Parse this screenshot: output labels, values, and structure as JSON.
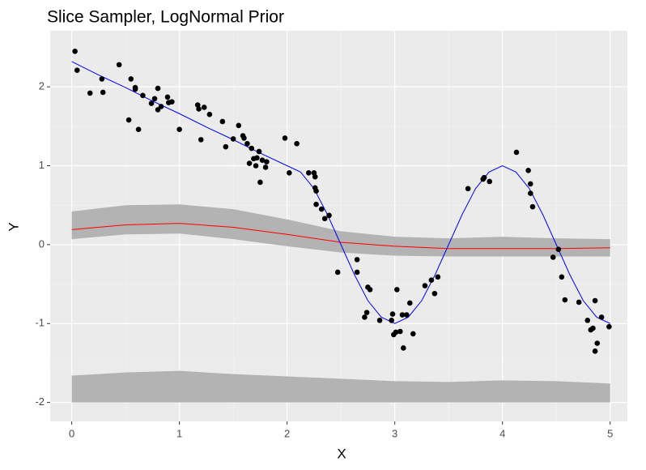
{
  "chart_data": {
    "type": "scatter",
    "title": "Slice Sampler, LogNormal Prior",
    "x_label": "X",
    "y_label": "Y",
    "xlim": [
      -0.2,
      5.16
    ],
    "ylim": [
      -2.24,
      2.71
    ],
    "xticks": [
      0,
      1,
      2,
      3,
      4,
      5
    ],
    "yticks": [
      -2,
      -1,
      0,
      1,
      2
    ],
    "grid": true,
    "series": [
      {
        "type": "band",
        "color": "#b3b3b3",
        "x": [
          0,
          0.5,
          1,
          1.5,
          2,
          2.5,
          3,
          3.5,
          4,
          4.5,
          5
        ],
        "lower": [
          -2,
          -2,
          -2,
          -2,
          -2,
          -2,
          -2,
          -2,
          -2,
          -2,
          -2
        ],
        "upper": [
          -1.66,
          -1.62,
          -1.6,
          -1.64,
          -1.67,
          -1.7,
          -1.73,
          -1.74,
          -1.72,
          -1.73,
          -1.76
        ]
      },
      {
        "type": "band",
        "color": "#b3b3b3",
        "x": [
          0,
          0.5,
          1,
          1.5,
          2,
          2.5,
          3,
          3.5,
          4,
          4.5,
          5
        ],
        "lower": [
          0.07,
          0.13,
          0.14,
          0.07,
          -0.02,
          -0.1,
          -0.14,
          -0.15,
          -0.15,
          -0.15,
          -0.15
        ],
        "upper": [
          0.42,
          0.5,
          0.51,
          0.45,
          0.32,
          0.17,
          0.1,
          0.08,
          0.1,
          0.08,
          0.07
        ]
      },
      {
        "type": "line",
        "color": "#ff0000",
        "x": [
          0,
          0.5,
          1,
          1.5,
          2,
          2.5,
          3,
          3.5,
          4,
          4.5,
          5
        ],
        "values": [
          0.19,
          0.25,
          0.27,
          0.22,
          0.13,
          0.03,
          -0.02,
          -0.05,
          -0.05,
          -0.05,
          -0.04
        ]
      },
      {
        "type": "line",
        "color": "#0000ff",
        "x": [
          0,
          0.25,
          0.5,
          0.75,
          1,
          1.25,
          1.5,
          1.75,
          2,
          2.125,
          2.25,
          2.375,
          2.5,
          2.625,
          2.75,
          2.875,
          3,
          3.125,
          3.25,
          3.375,
          3.5,
          3.625,
          3.75,
          3.875,
          4,
          4.125,
          4.25,
          4.375,
          4.5,
          4.625,
          4.75,
          4.875,
          5
        ],
        "values": [
          2.32,
          2.15,
          1.99,
          1.82,
          1.66,
          1.49,
          1.33,
          1.16,
          1.0,
          0.92,
          0.71,
          0.38,
          0,
          -0.38,
          -0.71,
          -0.92,
          -1,
          -0.92,
          -0.71,
          -0.38,
          0,
          0.38,
          0.71,
          0.92,
          1,
          0.92,
          0.71,
          0.38,
          0,
          -0.38,
          -0.71,
          -0.92,
          -1
        ]
      },
      {
        "type": "points",
        "color": "#000000",
        "x": [
          0.03,
          0.05,
          0.17,
          0.28,
          0.29,
          0.44,
          0.53,
          0.55,
          0.59,
          0.59,
          0.62,
          0.66,
          0.74,
          0.77,
          0.8,
          0.8,
          0.83,
          0.89,
          0.9,
          0.93,
          1.0,
          1.17,
          1.18,
          1.2,
          1.23,
          1.28,
          1.4,
          1.43,
          1.5,
          1.55,
          1.59,
          1.6,
          1.63,
          1.65,
          1.67,
          1.69,
          1.71,
          1.72,
          1.74,
          1.75,
          1.77,
          1.8,
          1.81,
          1.98,
          2.02,
          2.09,
          2.2,
          2.25,
          2.26,
          2.26,
          2.27,
          2.27,
          2.32,
          2.35,
          2.39,
          2.47,
          2.65,
          2.65,
          2.72,
          2.74,
          2.75,
          2.77,
          2.86,
          2.97,
          2.98,
          2.99,
          3.01,
          3.02,
          3.05,
          3.07,
          3.08,
          3.11,
          3.14,
          3.17,
          3.28,
          3.34,
          3.37,
          3.4,
          3.68,
          3.82,
          3.83,
          3.88,
          4.13,
          4.24,
          4.26,
          4.26,
          4.28,
          4.47,
          4.52,
          4.55,
          4.58,
          4.71,
          4.79,
          4.82,
          4.84,
          4.86,
          4.88,
          4.86,
          4.92,
          4.99
        ],
        "values": [
          2.45,
          2.21,
          1.92,
          2.1,
          1.93,
          2.28,
          1.58,
          2.1,
          1.97,
          1.99,
          1.46,
          1.89,
          1.79,
          1.85,
          1.98,
          1.71,
          1.75,
          1.87,
          1.8,
          1.81,
          1.46,
          1.77,
          1.72,
          1.33,
          1.74,
          1.65,
          1.56,
          1.24,
          1.34,
          1.51,
          1.38,
          1.35,
          1.28,
          1.03,
          1.22,
          1.09,
          1.0,
          1.1,
          1.18,
          0.79,
          1.07,
          0.98,
          1.05,
          1.35,
          0.91,
          1.28,
          0.91,
          0.91,
          0.86,
          0.72,
          0.68,
          0.51,
          0.45,
          0.33,
          0.37,
          -0.35,
          -0.19,
          -0.35,
          -0.92,
          -0.86,
          -0.54,
          -0.57,
          -0.96,
          -0.96,
          -0.88,
          -1.14,
          -1.11,
          -0.57,
          -1.1,
          -0.89,
          -1.31,
          -0.89,
          -0.74,
          -1.13,
          -0.52,
          -0.45,
          -0.62,
          -0.41,
          0.71,
          0.83,
          0.85,
          0.8,
          1.17,
          0.94,
          0.77,
          0.65,
          0.48,
          -0.16,
          -0.06,
          -0.41,
          -0.7,
          -0.73,
          -0.96,
          -1.08,
          -1.06,
          -0.71,
          -1.25,
          -1.35,
          -0.92,
          -1.04
        ]
      }
    ]
  }
}
